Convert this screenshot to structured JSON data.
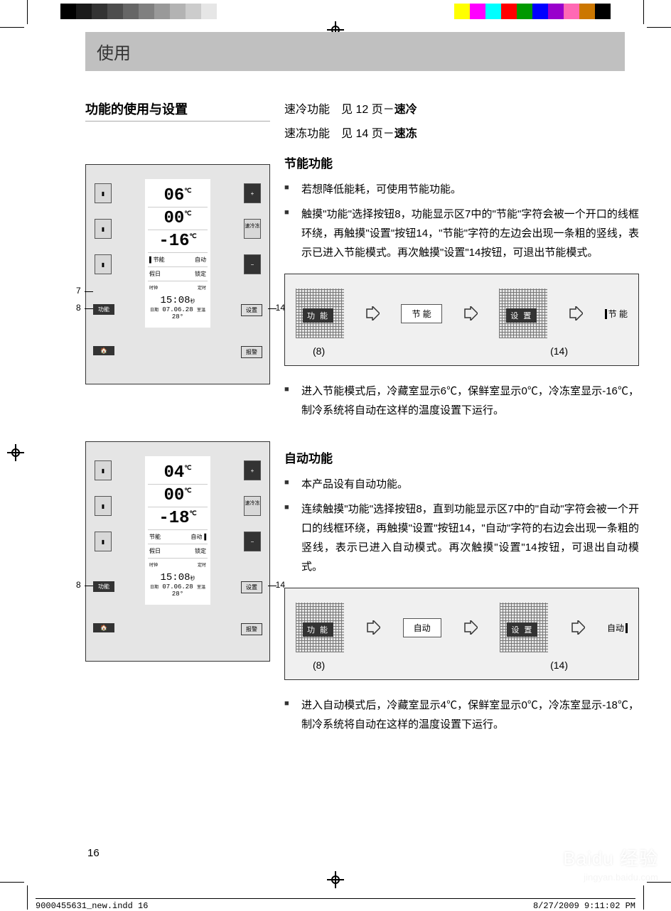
{
  "colorbar": {
    "grays": [
      "#000000",
      "#1a1a1a",
      "#333333",
      "#4d4d4d",
      "#666666",
      "#808080",
      "#999999",
      "#b3b3b3",
      "#cccccc",
      "#e6e6e6",
      "#ffffff"
    ],
    "colors": [
      "#ffff00",
      "#ff00ff",
      "#00ffff",
      "#ff0000",
      "#009900",
      "#0000ff",
      "#9900cc",
      "#ff69b4",
      "#cc7700",
      "#000000"
    ]
  },
  "header": {
    "title": "使用"
  },
  "left": {
    "subsection": "功能的使用与设置"
  },
  "panel1": {
    "temps": [
      "06",
      "00",
      "-16"
    ],
    "unit": "℃",
    "mode_left": "▌节能",
    "mode_right": "自动",
    "row2_left": "假日",
    "row2_right": "锁定",
    "time_label_l": "时钟",
    "time_label_r": "定时",
    "time": "15:08",
    "time_unit": "秒",
    "date_label": "日期",
    "date": "07.06.28",
    "room_label": "室温",
    "room": "28°",
    "callouts": {
      "c7": "7",
      "c8": "8",
      "c14": "14"
    },
    "btns": {
      "func": "功能",
      "set": "设置",
      "fast": "速冷冻",
      "home": "🏠",
      "alarm": "报警",
      "plus": "+",
      "minus": "−"
    }
  },
  "panel2": {
    "temps": [
      "04",
      "00",
      "-18"
    ],
    "unit": "℃",
    "mode_left": "节能",
    "mode_right": "自动▐",
    "row2_left": "假日",
    "row2_right": "锁定",
    "time_label_l": "时钟",
    "time_label_r": "定时",
    "time": "15:08",
    "time_unit": "秒",
    "date_label": "日期",
    "date": "07.06.28",
    "room_label": "室温",
    "room": "28°",
    "callouts": {
      "c8": "8",
      "c14": "14"
    },
    "btns": {
      "func": "功能",
      "set": "设置",
      "fast": "速冷冻",
      "home": "🏠",
      "alarm": "报警",
      "plus": "+",
      "minus": "−"
    }
  },
  "right": {
    "ref1_a": "速冷功能　见 12 页－",
    "ref1_b": "速冷",
    "ref2_a": "速冻功能　见 14 页－",
    "ref2_b": "速冻",
    "sec1_heading": "节能功能",
    "sec1_b1": "若想降低能耗，可使用节能功能。",
    "sec1_b2": "触摸\"功能\"选择按钮8，功能显示区7中的\"节能\"字符会被一个开口的线框环绕，再触摸\"设置\"按钮14，\"节能\"字符的左边会出现一条粗的竖线，表示已进入节能模式。再次触摸\"设置\"14按钮，可退出节能模式。",
    "sec1_b3": "进入节能模式后，冷藏室显示6℃，保鲜室显示0℃，冷冻室显示-16℃，制冷系统将自动在这样的温度设置下运行。",
    "diagram1": {
      "btn1": "功 能",
      "mode": "节 能",
      "btn2": "设 置",
      "result": "节 能",
      "n1": "(8)",
      "n2": "(14)"
    },
    "sec2_heading": "自动功能",
    "sec2_b1": "本产品设有自动功能。",
    "sec2_b2": "连续触摸\"功能\"选择按钮8，直到功能显示区7中的\"自动\"字符会被一个开口的线框环绕，再触摸\"设置\"按钮14，\"自动\"字符的右边会出现一条粗的竖线，表示已进入自动模式。再次触摸\"设置\"14按钮，可退出自动模式。",
    "sec2_b3": "进入自动模式后，冷藏室显示4℃，保鲜室显示0℃，冷冻室显示-18℃，制冷系统将自动在这样的温度设置下运行。",
    "diagram2": {
      "btn1": "功 能",
      "mode": "自动",
      "btn2": "设 置",
      "result": "自动",
      "n1": "(8)",
      "n2": "(14)"
    }
  },
  "footer": {
    "page": "16",
    "file": "9000455631_new.indd  16",
    "timestamp": "8/27/2009  9:11:02 PM"
  },
  "watermark": {
    "main": "Baidu 经验",
    "sub": "jingyan.baidu.com"
  }
}
